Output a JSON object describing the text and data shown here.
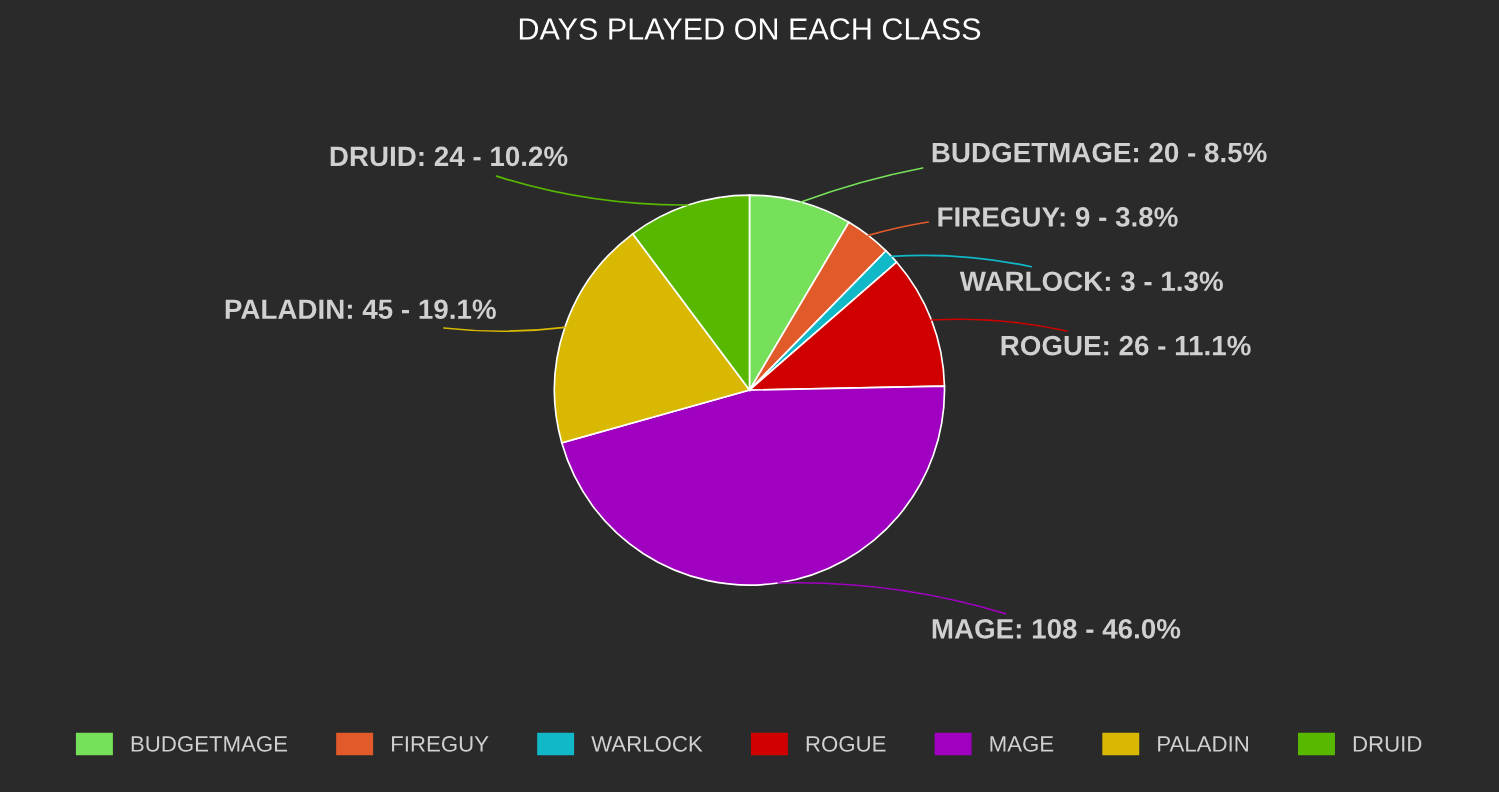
{
  "chart_data": {
    "type": "pie",
    "title": "DAYS PLAYED ON EACH CLASS",
    "categories": [
      "BUDGETMAGE",
      "FIREGUY",
      "WARLOCK",
      "ROGUE",
      "MAGE",
      "PALADIN",
      "DRUID"
    ],
    "values": [
      20,
      9,
      3,
      26,
      108,
      45,
      24
    ],
    "value_labels": [
      ": 20 - 8.5%",
      ": 9 - 3.8%",
      ": 3 - 1.3%",
      ": 26 - 11.1%",
      ": 108 - 46.0%",
      ": 45 - 19.1%",
      ": 24 - 10.2%"
    ],
    "colors": [
      "#77e05a",
      "#e05a2a",
      "#10b8c8",
      "#d00000",
      "#a000c0",
      "#d8b800",
      "#58b800"
    ],
    "legend": "bottom"
  }
}
